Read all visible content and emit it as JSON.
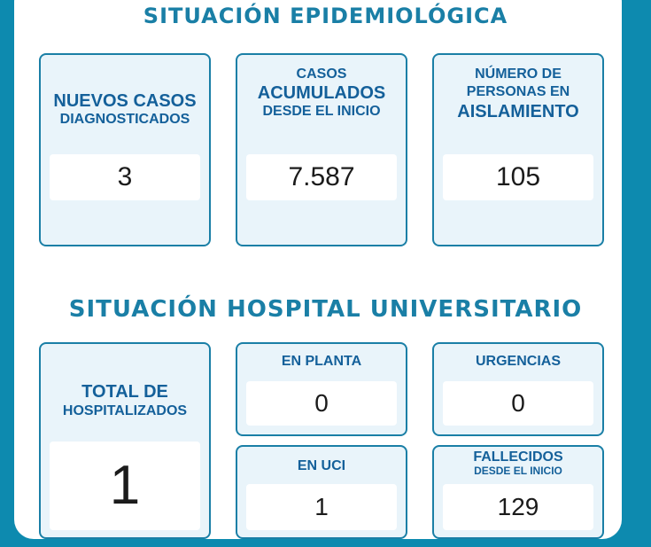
{
  "epidemiological": {
    "title": "SITUACIÓN EPIDEMIOLÓGICA",
    "new_cases": {
      "line1": "NUEVOS CASOS",
      "line2": "DIAGNOSTICADOS",
      "value": "3"
    },
    "cumulative": {
      "line1": "CASOS",
      "line2": "ACUMULADOS",
      "line3": "DESDE EL INICIO",
      "value": "7.587"
    },
    "isolation": {
      "line1": "NÚMERO DE",
      "line2": "PERSONAS EN",
      "line3": "AISLAMIENTO",
      "value": "105"
    }
  },
  "hospital": {
    "title": "SITUACIÓN HOSPITAL UNIVERSITARIO",
    "total": {
      "line1": "TOTAL DE",
      "line2": "HOSPITALIZADOS",
      "value": "1"
    },
    "ward": {
      "label": "EN PLANTA",
      "value": "0"
    },
    "emergency": {
      "label": "URGENCIAS",
      "value": "0"
    },
    "icu": {
      "label": "EN UCI",
      "value": "1"
    },
    "deceased": {
      "line1": "FALLECIDOS",
      "line2": "DESDE EL INICIO",
      "value": "129"
    }
  },
  "colors": {
    "background": "#0d8aaf",
    "accent": "#1a7fa6",
    "card": "#e9f4fa",
    "label": "#14609a"
  }
}
